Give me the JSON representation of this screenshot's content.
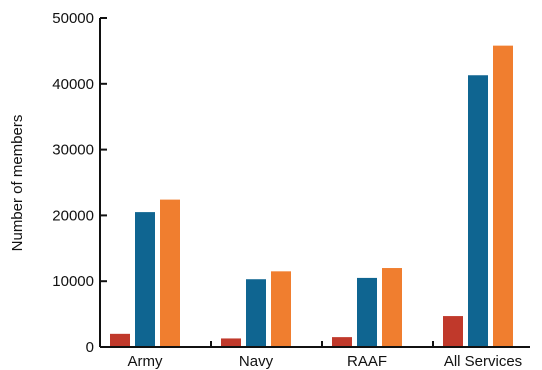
{
  "chart_data": {
    "type": "bar",
    "title": "",
    "xlabel": "",
    "ylabel": "Number of members",
    "categories": [
      "Army",
      "Navy",
      "RAAF",
      "All Services"
    ],
    "series": [
      {
        "color": "#c0392b",
        "values": [
          2000,
          1300,
          1500,
          4700
        ]
      },
      {
        "color": "#0f6591",
        "values": [
          20500,
          10300,
          10500,
          41300
        ]
      },
      {
        "color": "#f07e2f",
        "values": [
          22400,
          11500,
          12000,
          45800
        ]
      }
    ],
    "ylim": [
      0,
      50000
    ],
    "yticks": [
      "0",
      "10000",
      "20000",
      "30000",
      "40000",
      "50000"
    ],
    "grid": false,
    "legend": "none"
  }
}
